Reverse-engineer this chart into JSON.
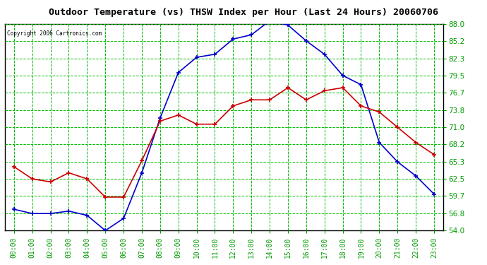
{
  "title": "Outdoor Temperature (vs) THSW Index per Hour (Last 24 Hours) 20060706",
  "copyright": "Copyright 2006 Cartronics.com",
  "hours": [
    "00:00",
    "01:00",
    "02:00",
    "03:00",
    "04:00",
    "05:00",
    "06:00",
    "07:00",
    "08:00",
    "09:00",
    "10:00",
    "11:00",
    "12:00",
    "13:00",
    "14:00",
    "15:00",
    "16:00",
    "17:00",
    "18:00",
    "19:00",
    "20:00",
    "21:00",
    "22:00",
    "23:00"
  ],
  "blue_line": [
    57.5,
    56.8,
    56.8,
    57.2,
    56.5,
    54.0,
    56.0,
    63.5,
    72.5,
    80.0,
    82.5,
    83.0,
    85.5,
    86.2,
    88.5,
    87.8,
    85.2,
    83.0,
    79.5,
    78.0,
    68.5,
    65.3,
    63.0,
    60.0
  ],
  "red_line": [
    64.5,
    62.5,
    62.0,
    63.5,
    62.5,
    59.5,
    59.5,
    65.5,
    72.0,
    73.0,
    71.5,
    71.5,
    74.5,
    75.5,
    75.5,
    77.5,
    75.5,
    77.0,
    77.5,
    74.5,
    73.5,
    71.0,
    68.5,
    66.5
  ],
  "yticks": [
    54.0,
    56.8,
    59.7,
    62.5,
    65.3,
    68.2,
    71.0,
    73.8,
    76.7,
    79.5,
    82.3,
    85.2,
    88.0
  ],
  "ymin": 54.0,
  "ymax": 88.0,
  "bg_color": "#ffffff",
  "plot_bg_color": "#ffffff",
  "grid_color": "#00bb00",
  "blue_color": "#0000cc",
  "red_color": "#cc0000",
  "title_color": "#000000",
  "tick_label_color": "#009900",
  "border_color": "#000000"
}
